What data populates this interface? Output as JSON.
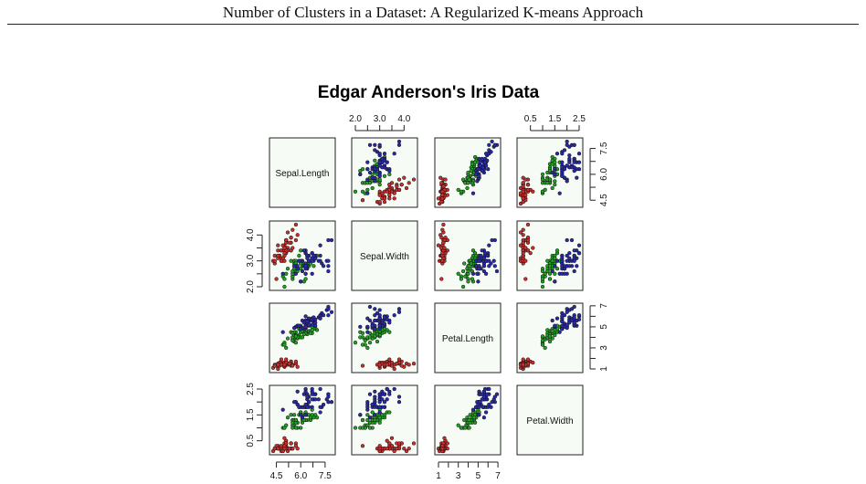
{
  "running_head": "Number of Clusters in a Dataset: A Regularized K-means Approach",
  "chart_data": {
    "type": "scatter-matrix",
    "title": "Edgar Anderson's Iris Data",
    "variables": [
      "Sepal.Length",
      "Sepal.Width",
      "Petal.Length",
      "Petal.Width"
    ],
    "ranges": {
      "Sepal.Length": [
        4.3,
        7.9
      ],
      "Sepal.Width": [
        2.0,
        4.4
      ],
      "Petal.Length": [
        1.0,
        6.9
      ],
      "Petal.Width": [
        0.1,
        2.5
      ]
    },
    "top_axis": {
      "Sepal.Width": [
        "2.0",
        "3.0",
        "4.0"
      ],
      "Petal.Width": [
        "0.5",
        "1.5",
        "2.5"
      ]
    },
    "bottom_axis": {
      "Sepal.Length": [
        "4.5",
        "6.0",
        "7.5"
      ],
      "Petal.Length": [
        "1",
        "3",
        "5",
        "7"
      ]
    },
    "left_axis": {
      "Sepal.Width": [
        "2.0",
        "3.0",
        "4.0"
      ],
      "Petal.Width": [
        "0.5",
        "1.5",
        "2.5"
      ]
    },
    "right_axis": {
      "Sepal.Length": [
        "4.5",
        "6.0",
        "7.5"
      ],
      "Petal.Length": [
        "1",
        "3",
        "5",
        "7"
      ]
    },
    "group_colors": [
      "#c8302e",
      "#22a022",
      "#2a2aa8"
    ],
    "groups": [
      {
        "Sepal.Length": [
          5.1,
          4.9,
          4.7,
          4.6,
          5.0,
          5.4,
          4.6,
          5.0,
          4.4,
          4.9,
          5.4,
          4.8,
          4.8,
          4.3,
          5.8,
          5.7,
          5.4,
          5.1,
          5.7,
          5.1,
          5.4,
          5.1,
          4.6,
          5.1,
          4.8,
          5.0,
          5.0,
          5.2,
          5.2,
          4.7,
          4.8,
          5.4,
          5.2,
          5.5,
          4.9,
          5.0,
          5.5,
          4.9,
          4.4,
          5.1,
          5.0,
          4.5,
          4.4,
          5.0,
          5.1,
          4.8,
          5.1,
          4.6,
          5.3,
          5.0
        ],
        "Sepal.Width": [
          3.5,
          3.0,
          3.2,
          3.1,
          3.6,
          3.9,
          3.4,
          3.4,
          2.9,
          3.1,
          3.7,
          3.4,
          3.0,
          3.0,
          4.0,
          4.4,
          3.9,
          3.5,
          3.8,
          3.8,
          3.4,
          3.7,
          3.6,
          3.3,
          3.4,
          3.0,
          3.4,
          3.5,
          3.4,
          3.2,
          3.1,
          3.4,
          4.1,
          4.2,
          3.1,
          3.2,
          3.5,
          3.6,
          3.0,
          3.4,
          3.5,
          2.3,
          3.2,
          3.5,
          3.8,
          3.0,
          3.8,
          3.2,
          3.7,
          3.3
        ],
        "Petal.Length": [
          1.4,
          1.4,
          1.3,
          1.5,
          1.4,
          1.7,
          1.4,
          1.5,
          1.4,
          1.5,
          1.5,
          1.6,
          1.4,
          1.1,
          1.2,
          1.5,
          1.3,
          1.4,
          1.7,
          1.5,
          1.7,
          1.5,
          1.0,
          1.7,
          1.9,
          1.6,
          1.6,
          1.5,
          1.4,
          1.6,
          1.6,
          1.5,
          1.5,
          1.4,
          1.5,
          1.2,
          1.3,
          1.4,
          1.3,
          1.5,
          1.3,
          1.3,
          1.3,
          1.6,
          1.9,
          1.4,
          1.6,
          1.4,
          1.5,
          1.4
        ],
        "Petal.Width": [
          0.2,
          0.2,
          0.2,
          0.2,
          0.2,
          0.4,
          0.3,
          0.2,
          0.2,
          0.1,
          0.2,
          0.2,
          0.1,
          0.1,
          0.2,
          0.4,
          0.4,
          0.3,
          0.3,
          0.3,
          0.2,
          0.4,
          0.2,
          0.5,
          0.2,
          0.2,
          0.4,
          0.2,
          0.2,
          0.2,
          0.2,
          0.4,
          0.1,
          0.2,
          0.2,
          0.2,
          0.2,
          0.1,
          0.2,
          0.2,
          0.3,
          0.3,
          0.2,
          0.6,
          0.4,
          0.3,
          0.2,
          0.2,
          0.2,
          0.2
        ]
      },
      {
        "Sepal.Length": [
          7.0,
          6.4,
          6.9,
          5.5,
          6.5,
          5.7,
          6.3,
          4.9,
          6.6,
          5.2,
          5.0,
          5.9,
          6.0,
          6.1,
          5.6,
          6.7,
          5.6,
          5.8,
          6.2,
          5.6,
          5.9,
          6.1,
          6.3,
          6.1,
          6.4,
          6.6,
          6.8,
          6.7,
          6.0,
          5.7,
          5.5,
          5.5,
          5.8,
          6.0,
          5.4,
          6.0,
          6.7,
          6.3,
          5.6,
          5.5,
          5.5,
          6.1,
          5.8,
          5.0,
          5.6,
          5.7,
          5.7,
          6.2,
          5.1,
          5.7
        ],
        "Sepal.Width": [
          3.2,
          3.2,
          3.1,
          2.3,
          2.8,
          2.8,
          3.3,
          2.4,
          2.9,
          2.7,
          2.0,
          3.0,
          2.2,
          2.9,
          2.9,
          3.1,
          3.0,
          2.7,
          2.2,
          2.5,
          3.2,
          2.8,
          2.5,
          2.8,
          2.9,
          3.0,
          2.8,
          3.0,
          2.9,
          2.6,
          2.4,
          2.4,
          2.7,
          2.7,
          3.0,
          3.4,
          3.1,
          2.3,
          3.0,
          2.5,
          2.6,
          3.0,
          2.6,
          2.3,
          2.7,
          3.0,
          2.9,
          2.9,
          2.5,
          2.8
        ],
        "Petal.Length": [
          4.7,
          4.5,
          4.9,
          4.0,
          4.6,
          4.5,
          4.7,
          3.3,
          4.6,
          3.9,
          3.5,
          4.2,
          4.0,
          4.7,
          3.6,
          4.4,
          4.5,
          4.1,
          4.5,
          3.9,
          4.8,
          4.0,
          4.9,
          4.7,
          4.3,
          4.4,
          4.8,
          5.0,
          4.5,
          3.5,
          3.8,
          3.7,
          3.9,
          5.1,
          4.5,
          4.5,
          4.7,
          4.4,
          4.1,
          4.0,
          4.4,
          4.6,
          4.0,
          3.3,
          4.2,
          4.2,
          4.2,
          4.3,
          3.0,
          4.1
        ],
        "Petal.Width": [
          1.4,
          1.5,
          1.5,
          1.3,
          1.5,
          1.3,
          1.6,
          1.0,
          1.3,
          1.4,
          1.0,
          1.5,
          1.0,
          1.4,
          1.3,
          1.4,
          1.5,
          1.0,
          1.5,
          1.1,
          1.8,
          1.3,
          1.5,
          1.2,
          1.3,
          1.4,
          1.4,
          1.7,
          1.5,
          1.0,
          1.1,
          1.0,
          1.2,
          1.6,
          1.5,
          1.6,
          1.5,
          1.3,
          1.3,
          1.3,
          1.2,
          1.4,
          1.2,
          1.0,
          1.3,
          1.2,
          1.3,
          1.3,
          1.1,
          1.3
        ]
      },
      {
        "Sepal.Length": [
          6.3,
          5.8,
          7.1,
          6.3,
          6.5,
          7.6,
          4.9,
          7.3,
          6.7,
          7.2,
          6.5,
          6.4,
          6.8,
          5.7,
          5.8,
          6.4,
          6.5,
          7.7,
          7.7,
          6.0,
          6.9,
          5.6,
          7.7,
          6.3,
          6.7,
          7.2,
          6.2,
          6.1,
          6.4,
          7.2,
          7.4,
          7.9,
          6.4,
          6.3,
          6.1,
          7.7,
          6.3,
          6.4,
          6.0,
          6.9,
          6.7,
          6.9,
          5.8,
          6.8,
          6.7,
          6.7,
          6.3,
          6.5,
          6.2,
          5.9
        ],
        "Sepal.Width": [
          3.3,
          2.7,
          3.0,
          2.9,
          3.0,
          3.0,
          2.5,
          2.9,
          2.5,
          3.6,
          3.2,
          2.7,
          3.0,
          2.5,
          2.8,
          3.2,
          3.0,
          3.8,
          2.6,
          2.2,
          3.2,
          2.8,
          2.8,
          2.7,
          3.3,
          3.2,
          2.8,
          3.0,
          2.8,
          3.0,
          2.8,
          3.8,
          2.8,
          2.8,
          2.6,
          3.0,
          3.4,
          3.1,
          3.0,
          3.1,
          3.1,
          3.1,
          2.7,
          3.2,
          3.3,
          3.0,
          2.5,
          3.0,
          3.4,
          3.0
        ],
        "Petal.Length": [
          6.0,
          5.1,
          5.9,
          5.6,
          5.8,
          6.6,
          4.5,
          6.3,
          5.8,
          6.1,
          5.1,
          5.3,
          5.5,
          5.0,
          5.1,
          5.3,
          5.5,
          6.7,
          6.9,
          5.0,
          5.7,
          4.9,
          6.7,
          4.9,
          5.7,
          6.0,
          4.8,
          4.9,
          5.6,
          5.8,
          6.1,
          6.4,
          5.6,
          5.1,
          5.6,
          6.1,
          5.6,
          5.5,
          4.8,
          5.4,
          5.6,
          5.1,
          5.1,
          5.9,
          5.7,
          5.2,
          5.0,
          5.2,
          5.4,
          5.1
        ],
        "Petal.Width": [
          2.5,
          1.9,
          2.1,
          1.8,
          2.2,
          2.1,
          1.7,
          1.8,
          1.8,
          2.5,
          2.0,
          1.9,
          2.1,
          2.0,
          2.4,
          2.3,
          1.8,
          2.2,
          2.3,
          1.5,
          2.3,
          2.0,
          2.0,
          1.8,
          2.1,
          1.8,
          1.8,
          1.8,
          2.1,
          1.6,
          1.9,
          2.0,
          2.2,
          1.5,
          1.4,
          2.3,
          2.4,
          1.8,
          1.8,
          2.1,
          2.4,
          2.3,
          1.9,
          2.3,
          2.5,
          2.3,
          1.9,
          2.0,
          2.3,
          1.8
        ]
      }
    ]
  }
}
